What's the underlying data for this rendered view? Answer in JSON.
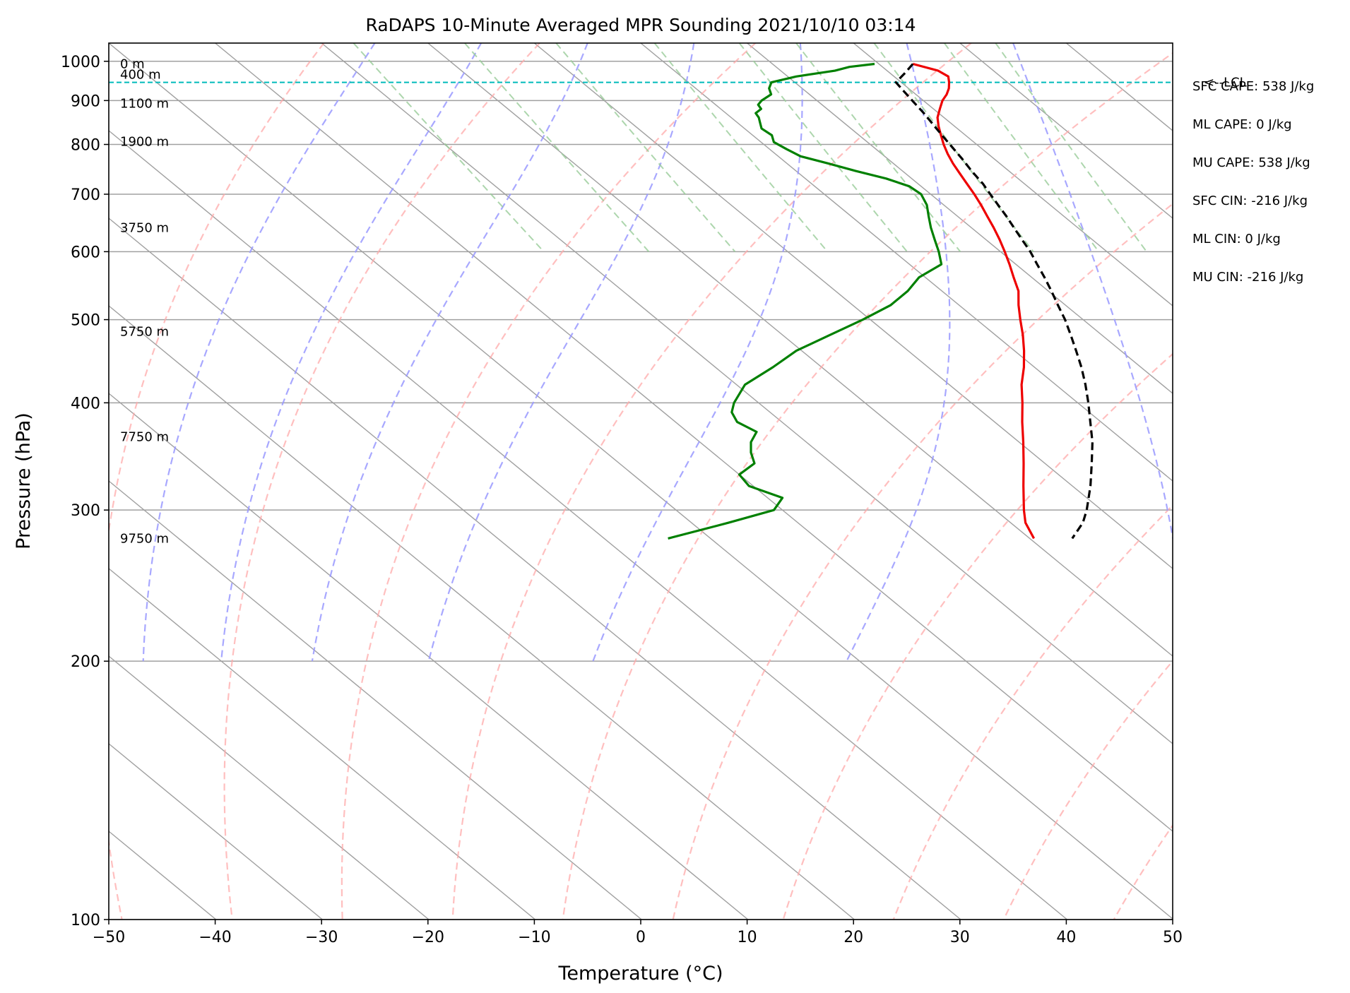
{
  "chart_data": {
    "type": "skew-t sounding",
    "title": "RaDAPS 10-Minute Averaged MPR Sounding 2021/10/10 03:14",
    "xlabel": "Temperature (°C)",
    "ylabel": "Pressure (hPa)",
    "xlim": [
      -50,
      50
    ],
    "ylim": [
      1050,
      100
    ],
    "yscale": "log",
    "x_ticks": [
      -50,
      -40,
      -30,
      -20,
      -10,
      0,
      10,
      20,
      30,
      40,
      50
    ],
    "x_tick_labels": [
      "−50",
      "−40",
      "−30",
      "−20",
      "−10",
      "0",
      "10",
      "20",
      "30",
      "40",
      "50"
    ],
    "y_ticks": [
      100,
      200,
      300,
      400,
      500,
      600,
      700,
      800,
      900,
      1000
    ],
    "y_tick_labels": [
      "100",
      "200",
      "300",
      "400",
      "500",
      "600",
      "700",
      "800",
      "900",
      "1000"
    ],
    "grid": true,
    "skew_deg_per_decade": 98,
    "background_lines": {
      "isotherms_c": [
        -160,
        -150,
        -140,
        -130,
        -120,
        -110,
        -100,
        -90,
        -80,
        -70,
        -60,
        -50,
        -40,
        -30,
        -20,
        -10,
        0,
        10,
        20,
        30,
        40,
        50
      ],
      "dry_adiabats_k": [
        200,
        220,
        240,
        260,
        280,
        300,
        320,
        340,
        360,
        380,
        400,
        420,
        440,
        460,
        480
      ],
      "moist_adiabats_c": [
        -25,
        -15,
        -5,
        5,
        15,
        25,
        35
      ],
      "mixing_ratios_gkg": [
        0.4,
        1,
        2,
        4,
        7,
        10,
        16,
        24,
        32
      ]
    },
    "series": [
      {
        "kind": "temperature",
        "color": "#ee0000",
        "pressure": [
          993,
          975,
          960,
          945,
          930,
          915,
          900,
          880,
          860,
          840,
          820,
          800,
          780,
          760,
          740,
          720,
          700,
          680,
          660,
          640,
          620,
          600,
          580,
          560,
          540,
          520,
          500,
          480,
          460,
          440,
          420,
          400,
          380,
          360,
          340,
          320,
          300,
          290,
          278
        ],
        "temp": [
          23.2,
          24.8,
          25.1,
          24.5,
          23.8,
          22.9,
          21.8,
          20.6,
          19.4,
          18.5,
          17.7,
          16.9,
          16.2,
          15.6,
          15.1,
          14.6,
          14.1,
          13.5,
          12.8,
          12.1,
          11.3,
          10.4,
          9.4,
          8.3,
          7.2,
          5.6,
          4.1,
          2.6,
          0.9,
          -1.0,
          -3.2,
          -5.2,
          -7.4,
          -9.6,
          -12.0,
          -14.6,
          -17.3,
          -18.6,
          -19.6
        ]
      },
      {
        "kind": "dewpoint",
        "color": "#008000",
        "pressure": [
          993,
          985,
          975,
          960,
          945,
          930,
          915,
          900,
          890,
          880,
          870,
          860,
          850,
          835,
          820,
          805,
          790,
          775,
          760,
          745,
          730,
          715,
          700,
          680,
          660,
          640,
          620,
          600,
          580,
          560,
          540,
          520,
          500,
          480,
          460,
          440,
          420,
          400,
          390,
          380,
          370,
          360,
          350,
          340,
          330,
          320,
          310,
          300,
          290,
          278
        ],
        "temp": [
          19.6,
          16.9,
          15.1,
          10.8,
          7.8,
          6.9,
          6.4,
          4.8,
          4.0,
          3.8,
          2.8,
          2.6,
          2.2,
          1.6,
          1.8,
          1.2,
          1.6,
          2.1,
          3.9,
          5.6,
          7.6,
          8.9,
          9.1,
          8.4,
          7.3,
          6.2,
          5.2,
          4.2,
          3.0,
          -0.6,
          -3.2,
          -6.4,
          -10.7,
          -15.5,
          -20.5,
          -24.6,
          -29.2,
          -32.3,
          -33.6,
          -34.2,
          -33.5,
          -35.2,
          -36.4,
          -37.3,
          -40.0,
          -40.4,
          -38.6,
          -40.8,
          -46.5,
          -54.0
        ]
      },
      {
        "kind": "parcel",
        "color": "#000000",
        "style": "dashed",
        "pressure": [
          993,
          970,
          945,
          920,
          895,
          870,
          845,
          820,
          795,
          770,
          745,
          720,
          700,
          680,
          660,
          640,
          620,
          600,
          580,
          560,
          540,
          520,
          500,
          480,
          460,
          440,
          420,
          400,
          380,
          360,
          340,
          320,
          300,
          290,
          278
        ],
        "temp": [
          23.2,
          21.5,
          19.5,
          19.2,
          18.9,
          18.6,
          18.2,
          17.8,
          17.4,
          17.0,
          16.5,
          16.1,
          15.6,
          15.1,
          14.6,
          14.0,
          13.4,
          12.8,
          12.0,
          11.2,
          10.3,
          9.3,
          8.3,
          7.1,
          5.8,
          4.4,
          2.8,
          1.0,
          -1.0,
          -3.1,
          -5.6,
          -8.3,
          -11.4,
          -13.2,
          -16.0
        ]
      }
    ],
    "lcl": {
      "pressure": 945,
      "label": "<--LCL",
      "color": "#00bbbb"
    },
    "height_labels": [
      {
        "text": "9750 m",
        "pressure": 278
      },
      {
        "text": "7750 m",
        "pressure": 365
      },
      {
        "text": "5750 m",
        "pressure": 484
      },
      {
        "text": "3750 m",
        "pressure": 640
      },
      {
        "text": "1900 m",
        "pressure": 806
      },
      {
        "text": "1100 m",
        "pressure": 893
      },
      {
        "text": "400 m",
        "pressure": 965
      },
      {
        "text": "0 m",
        "pressure": 993
      }
    ],
    "annotations": [
      "SFC CAPE: 538 J/kg",
      "ML CAPE: 0 J/kg",
      "MU CAPE: 538 J/kg",
      "SFC CIN: -216 J/kg",
      "ML CIN: 0 J/kg",
      "MU CIN: -216 J/kg"
    ],
    "colors": {
      "isotherm": "#a0a0a0",
      "isobar": "#a0a0a0",
      "dry_adiabat": "#ffaaaa",
      "moist_adiabat": "#9999ff",
      "mixing_ratio": "#99cc99"
    }
  }
}
